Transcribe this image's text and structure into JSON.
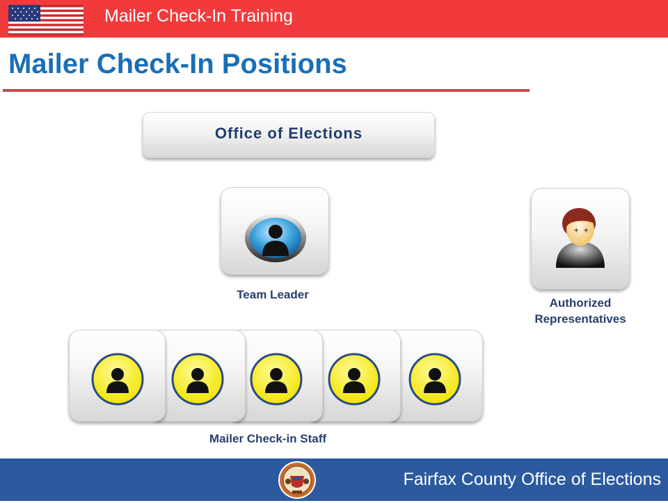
{
  "header": {
    "title": "Mailer Check-In Training"
  },
  "page": {
    "title": "Mailer Check-In Positions"
  },
  "org": {
    "top": "Office of Elections",
    "team_leader": "Team Leader",
    "authorized_line1": "Authorized",
    "authorized_line2": "Representatives",
    "staff": "Mailer Check-in Staff"
  },
  "footer": {
    "text": "Fairfax County Office of Elections"
  },
  "colors": {
    "header_red": "#f23a3c",
    "title_blue": "#1a6fb5",
    "footer_blue": "#2b5a9e",
    "caption_navy": "#27406e"
  },
  "icons": [
    "us-flag-icon",
    "team-leader-person-icon",
    "authorized-rep-person-icon",
    "staff-person-icon",
    "county-seal-icon"
  ]
}
